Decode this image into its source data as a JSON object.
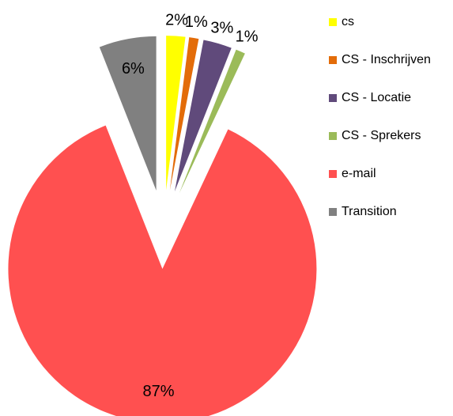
{
  "chart_data": {
    "type": "pie",
    "categories": [
      "cs",
      "CS - Inschrijven",
      "CS - Locatie",
      "CS - Sprekers",
      "e-mail",
      "Transition"
    ],
    "values": [
      2,
      1,
      3,
      1,
      87,
      6
    ],
    "value_labels": [
      "2%",
      "1%",
      "3%",
      "1%",
      "87%",
      "6%"
    ],
    "colors": [
      "#ffff00",
      "#e36c09",
      "#604a7b",
      "#9bbb59",
      "#ff5050",
      "#808080"
    ],
    "legend": "right"
  }
}
